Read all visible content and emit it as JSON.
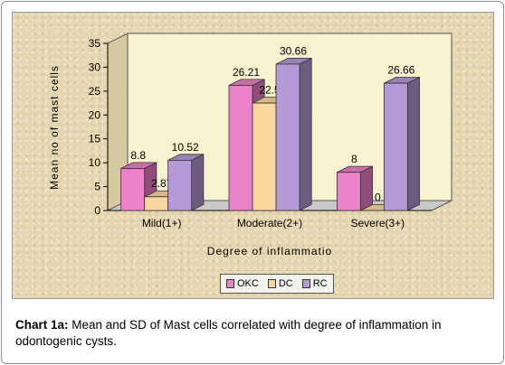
{
  "caption": {
    "label": "Chart 1a:",
    "text": " Mean and SD of  Mast cells correlated with degree of inflammation in odontogenic cysts."
  },
  "colors": {
    "OKC": "#ec82c9",
    "DC": "#fbd7a0",
    "RC": "#b49ad6",
    "plot_wall": "#f7f2cf"
  },
  "chart_data": {
    "type": "bar",
    "style": "3d-clustered",
    "categories": [
      "Mild(1+)",
      "Moderate(2+)",
      "Severe(3+)"
    ],
    "series": [
      {
        "name": "OKC",
        "values": [
          8.8,
          26.21,
          8
        ]
      },
      {
        "name": "DC",
        "values": [
          2.87,
          22.5,
          0
        ]
      },
      {
        "name": "RC",
        "values": [
          10.52,
          30.66,
          26.66
        ]
      }
    ],
    "data_labels": [
      [
        "8.8",
        "26.21",
        "8"
      ],
      [
        "2.87",
        "22.5",
        "0"
      ],
      [
        "10.52",
        "30.66",
        "26.66"
      ]
    ],
    "xlabel": "Degree of inflammatio",
    "ylabel": "Mean no of mast cells",
    "ylim": [
      0,
      35
    ],
    "yticks": [
      "0",
      "5",
      "10",
      "15",
      "20",
      "25",
      "30",
      "35"
    ],
    "legend_position": "bottom",
    "grid": false
  }
}
